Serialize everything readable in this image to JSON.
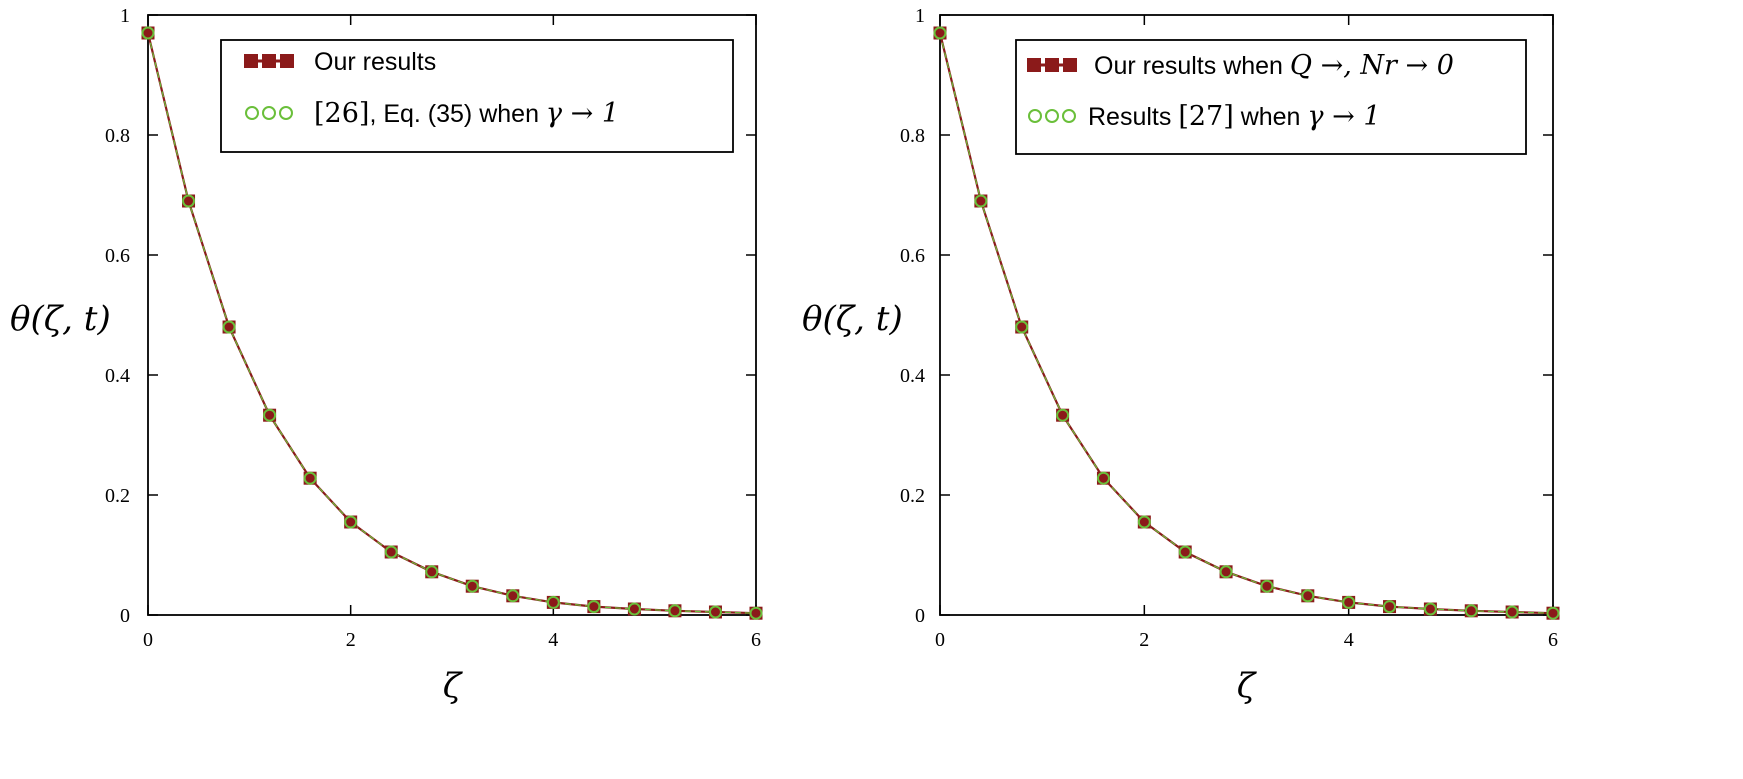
{
  "chart_data": [
    {
      "type": "line",
      "title": "",
      "xlabel": "ζ",
      "ylabel": "θ(ζ, t)",
      "xlim": [
        0,
        6
      ],
      "ylim": [
        0,
        1
      ],
      "xticks": [
        "0",
        "2",
        "4",
        "6"
      ],
      "yticks": [
        "0",
        "0.2",
        "0.4",
        "0.6",
        "0.8",
        "1"
      ],
      "legend_position": "top-right",
      "x": [
        0,
        0.4,
        0.8,
        1.2,
        1.6,
        2.0,
        2.4,
        2.8,
        3.2,
        3.6,
        4.0,
        4.4,
        4.8,
        5.2,
        5.6,
        6.0
      ],
      "series": [
        {
          "name": "Our results",
          "marker": "filled-square",
          "color": "#8b1a1a",
          "values": [
            0.97,
            0.69,
            0.48,
            0.333,
            0.228,
            0.155,
            0.105,
            0.072,
            0.048,
            0.032,
            0.021,
            0.014,
            0.01,
            0.007,
            0.005,
            0.003
          ]
        },
        {
          "name": "[26], Eq. (35) when γ → 1",
          "marker": "open-circle",
          "color": "#6abf3a",
          "values": [
            0.97,
            0.69,
            0.48,
            0.333,
            0.228,
            0.155,
            0.105,
            0.072,
            0.048,
            0.032,
            0.021,
            0.014,
            0.01,
            0.007,
            0.005,
            0.003
          ]
        }
      ],
      "legend": {
        "entry1": {
          "text": "Our results"
        },
        "entry2": {
          "ref": "[26]",
          "text": ", Eq. (35) when ",
          "math": "γ → 1"
        }
      }
    },
    {
      "type": "line",
      "title": "",
      "xlabel": "ζ",
      "ylabel": "θ(ζ, t)",
      "xlim": [
        0,
        6
      ],
      "ylim": [
        0,
        1
      ],
      "xticks": [
        "0",
        "2",
        "4",
        "6"
      ],
      "yticks": [
        "0",
        "0.2",
        "0.4",
        "0.6",
        "0.8",
        "1"
      ],
      "legend_position": "top-right",
      "x": [
        0,
        0.4,
        0.8,
        1.2,
        1.6,
        2.0,
        2.4,
        2.8,
        3.2,
        3.6,
        4.0,
        4.4,
        4.8,
        5.2,
        5.6,
        6.0
      ],
      "series": [
        {
          "name": "Our results when Q →, Nr → 0",
          "marker": "filled-square",
          "color": "#8b1a1a",
          "values": [
            0.97,
            0.69,
            0.48,
            0.333,
            0.228,
            0.155,
            0.105,
            0.072,
            0.048,
            0.032,
            0.021,
            0.014,
            0.01,
            0.007,
            0.005,
            0.003
          ]
        },
        {
          "name": "Results [27] when γ → 1",
          "marker": "open-circle",
          "color": "#6abf3a",
          "values": [
            0.97,
            0.69,
            0.48,
            0.333,
            0.228,
            0.155,
            0.105,
            0.072,
            0.048,
            0.032,
            0.021,
            0.014,
            0.01,
            0.007,
            0.005,
            0.003
          ]
        }
      ],
      "legend": {
        "entry1": {
          "text": "Our results when ",
          "math": "Q →, Nr → 0"
        },
        "entry2": {
          "text": "Results ",
          "ref": "[27]",
          "text2": " when ",
          "math": "γ → 1"
        }
      }
    }
  ]
}
